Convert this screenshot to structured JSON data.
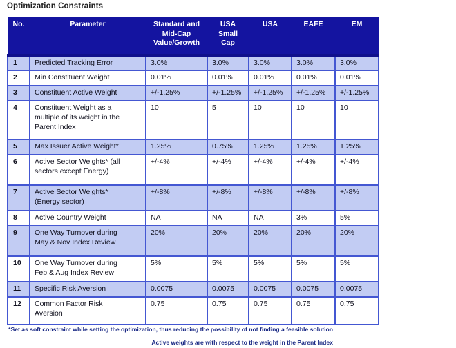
{
  "page_title": "Optimization Constraints",
  "colors": {
    "header_bg": "#1414a0",
    "header_text": "#ffffff",
    "border_blue": "#4457d2",
    "alt_row_bg": "#c2ccf3",
    "body_text": "#11111f",
    "footnote_text": "#1b2a85"
  },
  "table": {
    "columns": [
      "No.",
      "Parameter",
      "Standard and\nMid-Cap\nValue/Growth",
      "USA\nSmall\nCap",
      "USA",
      "EAFE",
      "EM"
    ],
    "rows": [
      {
        "no": "1",
        "parameter": "Predicted Tracking Error",
        "values": [
          "3.0%",
          "3.0%",
          "3.0%",
          "3.0%",
          "3.0%"
        ]
      },
      {
        "no": "2",
        "parameter": "Min Constituent Weight",
        "values": [
          "0.01%",
          "0.01%",
          "0.01%",
          "0.01%",
          "0.01%"
        ]
      },
      {
        "no": "3",
        "parameter": "Constituent Active Weight",
        "values": [
          "+/-1.25%",
          "+/-1.25%",
          "+/-1.25%",
          "+/-1.25%",
          "+/-1.25%"
        ]
      },
      {
        "no": "4",
        "parameter": "Constituent Weight as a\nmultiple of its weight in the\nParent Index",
        "values": [
          "10",
          "5",
          "10",
          "10",
          "10"
        ]
      },
      {
        "no": "5",
        "parameter": "Max Issuer Active Weight*",
        "values": [
          "1.25%",
          "0.75%",
          "1.25%",
          "1.25%",
          "1.25%"
        ]
      },
      {
        "no": "6",
        "parameter": "Active Sector Weights* (all\nsectors except Energy)",
        "values": [
          "+/-4%",
          "+/-4%",
          "+/-4%",
          "+/-4%",
          "+/-4%"
        ]
      },
      {
        "no": "7",
        "parameter": "Active Sector Weights*\n(Energy sector)",
        "values": [
          "+/-8%",
          "+/-8%",
          "+/-8%",
          "+/-8%",
          "+/-8%"
        ]
      },
      {
        "no": "8",
        "parameter": "Active Country Weight",
        "values": [
          "NA",
          "NA",
          "NA",
          "3%",
          "5%"
        ]
      },
      {
        "no": "9",
        "parameter": "One Way Turnover during\nMay & Nov Index Review",
        "values": [
          "20%",
          "20%",
          "20%",
          "20%",
          "20%"
        ]
      },
      {
        "no": "10",
        "parameter": "One Way Turnover during\nFeb & Aug Index Review",
        "values": [
          "5%",
          "5%",
          "5%",
          "5%",
          "5%"
        ]
      },
      {
        "no": "11",
        "parameter": "Specific Risk Aversion",
        "values": [
          "0.0075",
          "0.0075",
          "0.0075",
          "0.0075",
          "0.0075"
        ]
      },
      {
        "no": "12",
        "parameter": "Common Factor Risk\nAversion",
        "values": [
          "0.75",
          "0.75",
          "0.75",
          "0.75",
          "0.75"
        ]
      }
    ]
  },
  "footnotes": [
    "*Set as soft constraint while setting the optimization, thus reducing the possibility of not finding a feasible solution",
    "Active weights are with respect to the weight in the Parent Index"
  ]
}
